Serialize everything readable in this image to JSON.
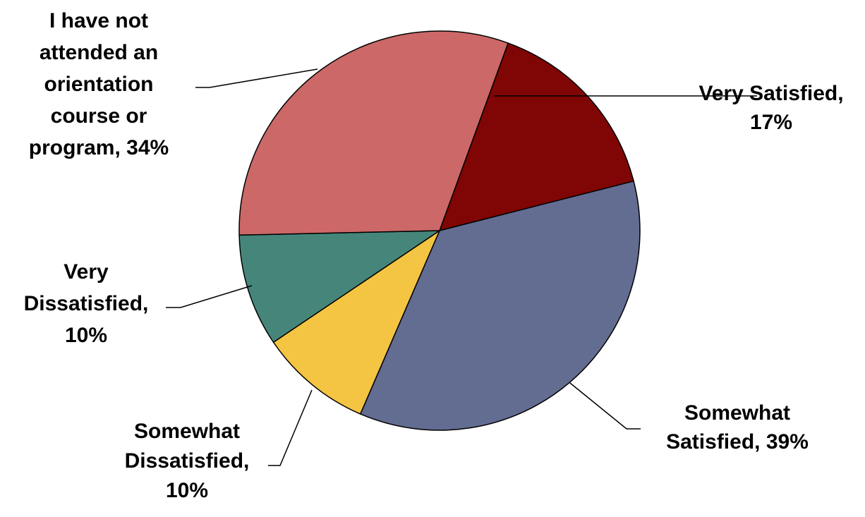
{
  "chart_data": {
    "type": "pie",
    "slices": [
      {
        "label": "Very Satisfied",
        "value": 17,
        "color": "#800505",
        "label_lines": [
          "Very Satisfied,",
          "17%"
        ]
      },
      {
        "label": "Somewhat Satisfied",
        "value": 39,
        "color": "#636C91",
        "label_lines": [
          "Somewhat",
          "Satisfied, 39%"
        ]
      },
      {
        "label": "Somewhat Dissatisfied",
        "value": 10,
        "color": "#F4C443",
        "label_lines": [
          "Somewhat",
          "Dissatisfied,",
          "10%"
        ]
      },
      {
        "label": "Very Dissatisfied",
        "value": 10,
        "color": "#46867A",
        "label_lines": [
          "Very",
          "Dissatisfied,",
          "10%"
        ]
      },
      {
        "label": "I have not attended an orientation course or program",
        "value": 34,
        "color": "#CC6868",
        "label_lines": [
          "I have not",
          "attended an",
          "orientation",
          "course or",
          "program, 34%"
        ]
      }
    ],
    "start_direction": "12 o'clock",
    "direction": "clockwise",
    "data_labels": "category name and percentage, outside with leader lines"
  }
}
